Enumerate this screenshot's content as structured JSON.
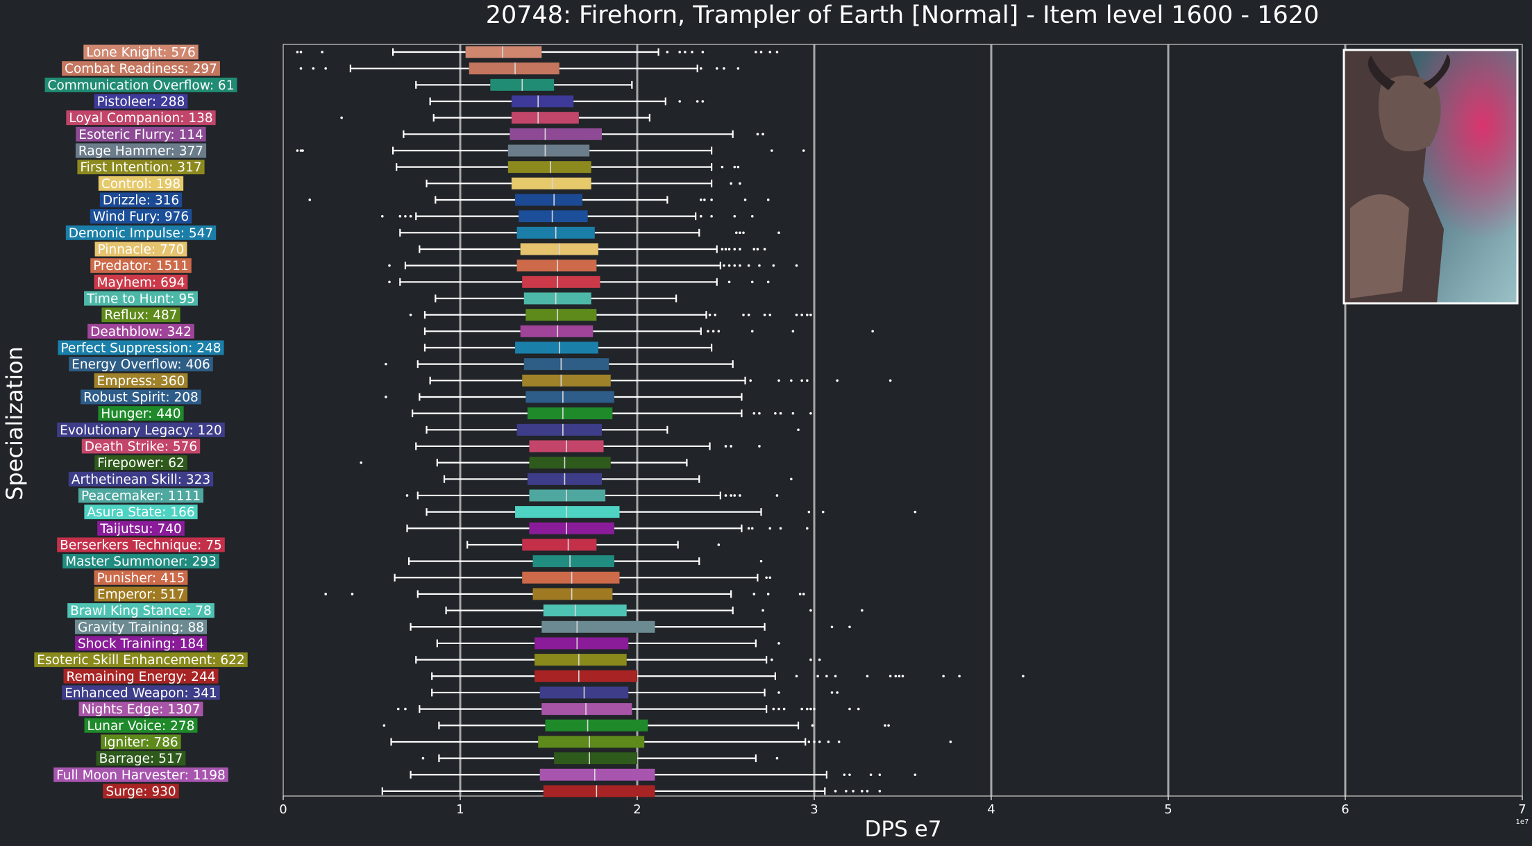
{
  "chart_data": {
    "type": "box",
    "title": "20748: Firehorn, Trampler of Earth [Normal] - Item level 1600 - 1620",
    "xlabel": "DPS e7",
    "ylabel": "Specialization",
    "x_tick_labels": [
      "0",
      "1",
      "2",
      "3",
      "4",
      "5",
      "6",
      "7"
    ],
    "x_ticks": [
      0,
      1,
      2,
      3,
      4,
      5,
      6,
      7
    ],
    "xlim": [
      0,
      7
    ],
    "offset_text": "1e7",
    "grid": "vertical",
    "boss_portrait": "top-right",
    "series": [
      {
        "label": "Lone Knight: 576",
        "color": "#d08770",
        "min": 0.62,
        "q1": 1.03,
        "median": 1.24,
        "q3": 1.46,
        "max": 2.12,
        "outliers": [
          0.08,
          0.1,
          0.22,
          2.17,
          2.24,
          2.27,
          2.31,
          2.37,
          2.67,
          2.7,
          2.75,
          2.79
        ]
      },
      {
        "label": "Combat Readiness: 297",
        "color": "#c4765f",
        "min": 0.38,
        "q1": 1.05,
        "median": 1.31,
        "q3": 1.56,
        "max": 2.34,
        "outliers": [
          0.1,
          0.17,
          0.24,
          2.36,
          2.45,
          2.49,
          2.57
        ]
      },
      {
        "label": "Communication Overflow: 61",
        "color": "#218c74",
        "min": 0.75,
        "q1": 1.17,
        "median": 1.35,
        "q3": 1.53,
        "max": 1.97,
        "outliers": []
      },
      {
        "label": "Pistoleer: 288",
        "color": "#3e3a99",
        "min": 0.83,
        "q1": 1.29,
        "median": 1.44,
        "q3": 1.64,
        "max": 2.16,
        "outliers": [
          2.24,
          2.34,
          2.37
        ]
      },
      {
        "label": "Loyal Companion: 138",
        "color": "#c2456a",
        "min": 0.85,
        "q1": 1.29,
        "median": 1.44,
        "q3": 1.67,
        "max": 2.07,
        "outliers": [
          0.33
        ]
      },
      {
        "label": "Esoteric Flurry: 114",
        "color": "#8e4a94",
        "min": 0.68,
        "q1": 1.28,
        "median": 1.48,
        "q3": 1.8,
        "max": 2.54,
        "outliers": [
          2.68,
          2.71
        ]
      },
      {
        "label": "Rage Hammer: 377",
        "color": "#6b7c8a",
        "min": 0.62,
        "q1": 1.27,
        "median": 1.48,
        "q3": 1.73,
        "max": 2.42,
        "outliers": [
          0.08,
          0.1,
          0.11,
          2.76,
          2.94
        ]
      },
      {
        "label": "First Intention: 317",
        "color": "#8c8a1e",
        "min": 0.64,
        "q1": 1.27,
        "median": 1.51,
        "q3": 1.74,
        "max": 2.42,
        "outliers": [
          2.48,
          2.55,
          2.57
        ]
      },
      {
        "label": "Control: 198",
        "color": "#e6c96b",
        "min": 0.81,
        "q1": 1.29,
        "median": 1.52,
        "q3": 1.74,
        "max": 2.42,
        "outliers": [
          2.53,
          2.58
        ]
      },
      {
        "label": "Drizzle: 316",
        "color": "#1c4a94",
        "min": 0.86,
        "q1": 1.31,
        "median": 1.53,
        "q3": 1.69,
        "max": 2.17,
        "outliers": [
          0.15,
          2.36,
          2.38,
          2.42,
          2.61,
          2.74
        ]
      },
      {
        "label": "Wind Fury: 976",
        "color": "#1c4f99",
        "min": 0.75,
        "q1": 1.33,
        "median": 1.52,
        "q3": 1.72,
        "max": 2.33,
        "outliers": [
          0.56,
          0.66,
          0.69,
          0.72,
          2.36,
          2.42,
          2.55,
          2.65
        ]
      },
      {
        "label": "Demonic Impulse: 547",
        "color": "#1a7ea8",
        "min": 0.66,
        "q1": 1.32,
        "median": 1.54,
        "q3": 1.76,
        "max": 2.35,
        "outliers": [
          2.56,
          2.58,
          2.6,
          2.8
        ]
      },
      {
        "label": "Pinnacle: 770",
        "color": "#e6c36e",
        "min": 0.77,
        "q1": 1.34,
        "median": 1.56,
        "q3": 1.78,
        "max": 2.45,
        "outliers": [
          2.48,
          2.5,
          2.52,
          2.55,
          2.58,
          2.66,
          2.68,
          2.72
        ]
      },
      {
        "label": "Predator: 1511",
        "color": "#cc6a4a",
        "min": 0.69,
        "q1": 1.32,
        "median": 1.55,
        "q3": 1.77,
        "max": 2.47,
        "outliers": [
          0.6,
          2.49,
          2.52,
          2.55,
          2.58,
          2.63,
          2.69,
          2.77,
          2.9
        ]
      },
      {
        "label": "Mayhem: 694",
        "color": "#cc3a4a",
        "min": 0.66,
        "q1": 1.35,
        "median": 1.55,
        "q3": 1.79,
        "max": 2.45,
        "outliers": [
          0.6,
          2.52,
          2.65,
          2.74
        ]
      },
      {
        "label": "Time to Hunt: 95",
        "color": "#4db8a8",
        "min": 0.86,
        "q1": 1.36,
        "median": 1.54,
        "q3": 1.74,
        "max": 2.22,
        "outliers": []
      },
      {
        "label": "Reflux: 487",
        "color": "#5e8a1c",
        "min": 0.8,
        "q1": 1.37,
        "median": 1.55,
        "q3": 1.77,
        "max": 2.39,
        "outliers": [
          0.72,
          2.41,
          2.44,
          2.6,
          2.63,
          2.72,
          2.75,
          2.9,
          2.93,
          2.96,
          2.98
        ]
      },
      {
        "label": "Deathblow: 342",
        "color": "#a0449a",
        "min": 0.8,
        "q1": 1.34,
        "median": 1.55,
        "q3": 1.75,
        "max": 2.36,
        "outliers": [
          2.4,
          2.43,
          2.46,
          2.65,
          2.88,
          3.33
        ]
      },
      {
        "label": "Perfect Suppression: 248",
        "color": "#1a80aa",
        "min": 0.8,
        "q1": 1.31,
        "median": 1.56,
        "q3": 1.78,
        "max": 2.42,
        "outliers": []
      },
      {
        "label": "Energy Overflow: 406",
        "color": "#2e5d85",
        "min": 0.76,
        "q1": 1.36,
        "median": 1.57,
        "q3": 1.84,
        "max": 2.54,
        "outliers": [
          0.58
        ]
      },
      {
        "label": "Empress: 360",
        "color": "#a0822a",
        "min": 0.83,
        "q1": 1.35,
        "median": 1.57,
        "q3": 1.85,
        "max": 2.61,
        "outliers": [
          2.64,
          2.8,
          2.87,
          2.93,
          2.96,
          3.13,
          3.43
        ]
      },
      {
        "label": "Robust Spirit: 208",
        "color": "#2e5d8a",
        "min": 0.77,
        "q1": 1.37,
        "median": 1.58,
        "q3": 1.87,
        "max": 2.59,
        "outliers": [
          0.58
        ]
      },
      {
        "label": "Hunger: 440",
        "color": "#1e8a2a",
        "min": 0.73,
        "q1": 1.38,
        "median": 1.58,
        "q3": 1.86,
        "max": 2.59,
        "outliers": [
          2.66,
          2.69,
          2.78,
          2.81,
          2.88,
          2.98
        ]
      },
      {
        "label": "Evolutionary Legacy: 120",
        "color": "#3e3d8a",
        "min": 0.81,
        "q1": 1.32,
        "median": 1.58,
        "q3": 1.8,
        "max": 2.17,
        "outliers": [
          2.91
        ]
      },
      {
        "label": "Death Strike: 576",
        "color": "#c4456a",
        "min": 0.75,
        "q1": 1.39,
        "median": 1.6,
        "q3": 1.81,
        "max": 2.41,
        "outliers": [
          2.5,
          2.53,
          2.69
        ]
      },
      {
        "label": "Firepower: 62",
        "color": "#2e5a1c",
        "min": 0.87,
        "q1": 1.39,
        "median": 1.59,
        "q3": 1.85,
        "max": 2.28,
        "outliers": [
          0.44
        ]
      },
      {
        "label": "Arthetinean Skill: 323",
        "color": "#3e3d8a",
        "min": 0.91,
        "q1": 1.38,
        "median": 1.59,
        "q3": 1.8,
        "max": 2.35,
        "outliers": [
          2.87
        ]
      },
      {
        "label": "Peacemaker: 1111",
        "color": "#4fa8a0",
        "min": 0.76,
        "q1": 1.39,
        "median": 1.6,
        "q3": 1.82,
        "max": 2.47,
        "outliers": [
          0.7,
          2.5,
          2.53,
          2.55,
          2.58,
          2.79
        ]
      },
      {
        "label": "Asura State: 166",
        "color": "#4ed3c3",
        "min": 0.81,
        "q1": 1.31,
        "median": 1.6,
        "q3": 1.9,
        "max": 2.7,
        "outliers": [
          2.97,
          3.05,
          3.57
        ]
      },
      {
        "label": "Taijutsu: 740",
        "color": "#8a1c99",
        "min": 0.7,
        "q1": 1.39,
        "median": 1.6,
        "q3": 1.87,
        "max": 2.59,
        "outliers": [
          2.63,
          2.65,
          2.75,
          2.81,
          2.96
        ]
      },
      {
        "label": "Berserkers Technique: 75",
        "color": "#c4304a",
        "min": 1.04,
        "q1": 1.35,
        "median": 1.61,
        "q3": 1.77,
        "max": 2.23,
        "outliers": [
          2.46
        ]
      },
      {
        "label": "Master Summoner: 293",
        "color": "#218c80",
        "min": 0.71,
        "q1": 1.41,
        "median": 1.62,
        "q3": 1.87,
        "max": 2.35,
        "outliers": [
          2.7
        ]
      },
      {
        "label": "Punisher: 415",
        "color": "#cc6a4a",
        "min": 0.63,
        "q1": 1.35,
        "median": 1.63,
        "q3": 1.9,
        "max": 2.68,
        "outliers": [
          2.73,
          2.75
        ]
      },
      {
        "label": "Emperor: 517",
        "color": "#a07a22",
        "min": 0.76,
        "q1": 1.41,
        "median": 1.63,
        "q3": 1.86,
        "max": 2.53,
        "outliers": [
          0.24,
          0.39,
          2.66,
          2.74,
          2.92,
          2.94
        ]
      },
      {
        "label": "Brawl King Stance: 78",
        "color": "#4ec3b3",
        "min": 0.92,
        "q1": 1.47,
        "median": 1.65,
        "q3": 1.94,
        "max": 2.54,
        "outliers": [
          2.71,
          2.98,
          3.27
        ]
      },
      {
        "label": "Gravity Training: 88",
        "color": "#6b8a92",
        "min": 0.72,
        "q1": 1.46,
        "median": 1.66,
        "q3": 2.1,
        "max": 2.72,
        "outliers": [
          3.1,
          3.2
        ]
      },
      {
        "label": "Shock Training: 184",
        "color": "#8a1c99",
        "min": 0.87,
        "q1": 1.42,
        "median": 1.66,
        "q3": 1.95,
        "max": 2.67,
        "outliers": [
          2.8
        ]
      },
      {
        "label": "Esoteric Skill Enhancement: 622",
        "color": "#8a8a1c",
        "min": 0.75,
        "q1": 1.42,
        "median": 1.67,
        "q3": 1.94,
        "max": 2.73,
        "outliers": [
          2.76,
          2.98,
          3.03
        ]
      },
      {
        "label": "Remaining Energy: 244",
        "color": "#a82424",
        "min": 0.84,
        "q1": 1.42,
        "median": 1.67,
        "q3": 2.0,
        "max": 2.78,
        "outliers": [
          2.9,
          3.02,
          3.07,
          3.12,
          3.3,
          3.43,
          3.46,
          3.48,
          3.5,
          3.73,
          3.82,
          4.18
        ]
      },
      {
        "label": "Enhanced Weapon: 341",
        "color": "#3e3d8a",
        "min": 0.84,
        "q1": 1.45,
        "median": 1.7,
        "q3": 1.95,
        "max": 2.72,
        "outliers": [
          2.8,
          3.1,
          3.13
        ]
      },
      {
        "label": "Nights Edge: 1307",
        "color": "#a855a8",
        "min": 0.77,
        "q1": 1.46,
        "median": 1.71,
        "q3": 1.97,
        "max": 2.73,
        "outliers": [
          0.65,
          0.69,
          2.77,
          2.8,
          2.83,
          2.93,
          2.96,
          2.98,
          3.0,
          3.2,
          3.25
        ]
      },
      {
        "label": "Lunar Voice: 278",
        "color": "#1e8a2a",
        "min": 0.88,
        "q1": 1.48,
        "median": 1.72,
        "q3": 2.06,
        "max": 2.91,
        "outliers": [
          0.57,
          2.99,
          3.4,
          3.42
        ]
      },
      {
        "label": "Igniter: 786",
        "color": "#5e8a1c",
        "min": 0.61,
        "q1": 1.44,
        "median": 1.73,
        "q3": 2.04,
        "max": 2.95,
        "outliers": [
          2.97,
          3.0,
          3.03,
          3.08,
          3.14,
          3.77
        ]
      },
      {
        "label": "Barrage: 517",
        "color": "#2e5a1c",
        "min": 0.88,
        "q1": 1.53,
        "median": 1.73,
        "q3": 2.0,
        "max": 2.67,
        "outliers": [
          0.79,
          2.79
        ]
      },
      {
        "label": "Full Moon Harvester: 1198",
        "color": "#a855b0",
        "min": 0.72,
        "q1": 1.45,
        "median": 1.76,
        "q3": 2.1,
        "max": 3.07,
        "outliers": [
          3.17,
          3.2,
          3.32,
          3.37,
          3.57
        ]
      },
      {
        "label": "Surge: 930",
        "color": "#a82424",
        "min": 0.56,
        "q1": 1.47,
        "median": 1.77,
        "q3": 2.1,
        "max": 3.06,
        "outliers": [
          3.12,
          3.18,
          3.22,
          3.27,
          3.3,
          3.37
        ]
      }
    ]
  }
}
